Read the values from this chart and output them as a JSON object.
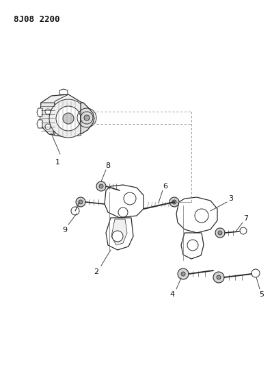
{
  "title_code": "8J08 2200",
  "bg_color": "#ffffff",
  "line_color": "#2a2a2a",
  "label_color": "#111111",
  "title_fontsize": 9,
  "label_fontsize": 7.5
}
